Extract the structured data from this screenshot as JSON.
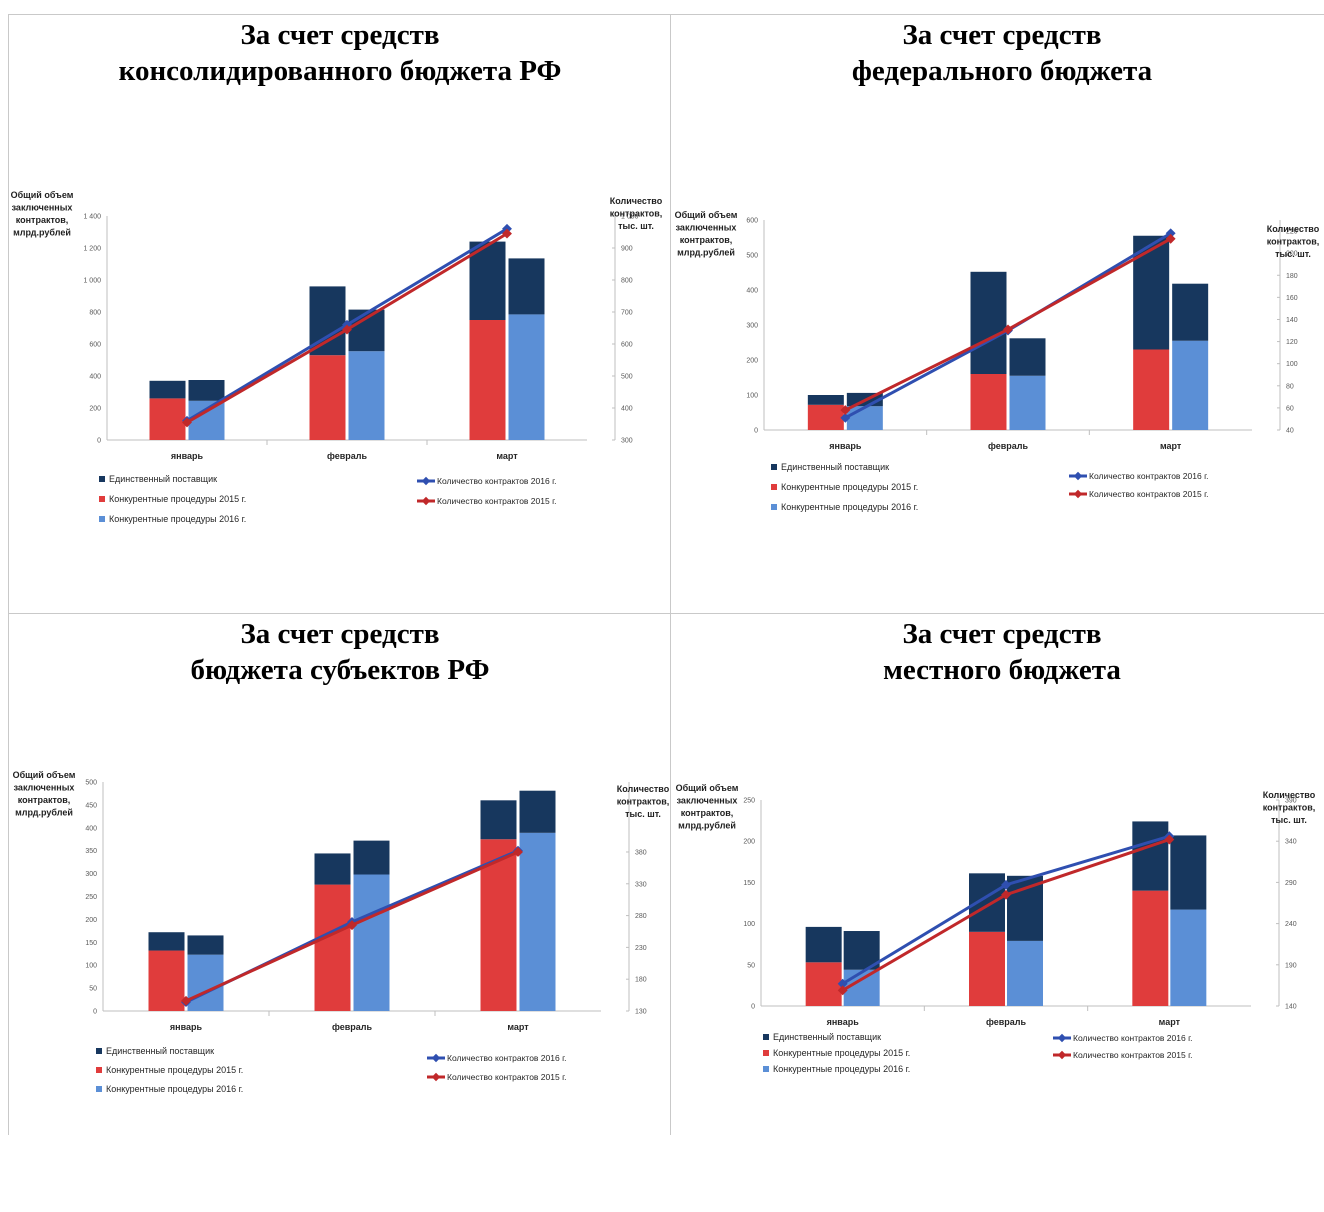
{
  "panels": [
    {
      "title_line1": "За счет средств",
      "title_line2": "консолидированного бюджета РФ"
    },
    {
      "title_line1": "За счет средств",
      "title_line2": "федерального бюджета"
    },
    {
      "title_line1": "За счет средств",
      "title_line2": "бюджета субъектов РФ"
    },
    {
      "title_line1": "За счет средств",
      "title_line2": "местного бюджета"
    }
  ],
  "colors": {
    "single_supplier": "#17375e",
    "competitive_2015": "#e03c3c",
    "competitive_2016": "#5b8fd6",
    "contracts_2016": "#2f4fb0",
    "contracts_2015": "#c0282a",
    "axis": "#bfbfbf",
    "tick_text": "#595959"
  },
  "chart_data": [
    {
      "type": "bar",
      "categories": [
        "январь",
        "февраль",
        "март"
      ],
      "ylabel": [
        "Общий объем",
        "заключенных",
        "контрактов,",
        "млрд.рублей"
      ],
      "y2label": [
        "Количество",
        "контрактов,",
        "тыс. шт."
      ],
      "ylim": [
        0,
        1400
      ],
      "yticks": [
        0,
        200,
        400,
        600,
        800,
        1000,
        1200,
        1400
      ],
      "ytick_labels": [
        "0",
        "200",
        "400",
        "600",
        "800",
        "1 000",
        "1 200",
        "1 400"
      ],
      "y2lim": [
        300,
        1000
      ],
      "y2ticks": [
        300,
        400,
        500,
        600,
        700,
        800,
        900,
        1000
      ],
      "y2tick_labels": [
        "300",
        "400",
        "500",
        "600",
        "700",
        "800",
        "900",
        "1 000"
      ],
      "series": [
        {
          "name": "Конкурентные процедуры 2015 г.",
          "values": [
            260,
            530,
            750
          ]
        },
        {
          "name": "Единственный поставщик",
          "values_2015": [
            110,
            430,
            490
          ],
          "values_2016": [
            130,
            260,
            350
          ]
        },
        {
          "name": "Конкурентные процедуры 2016 г.",
          "values": [
            245,
            555,
            785
          ]
        }
      ],
      "lines": [
        {
          "name": "Количество контрактов 2016 г.",
          "values": [
            360,
            660,
            960
          ]
        },
        {
          "name": "Количество контрактов  2015 г.",
          "values": [
            355,
            645,
            945
          ]
        }
      ],
      "legend": {
        "single": "Единственный поставщик",
        "comp2015": "Конкурентные процедуры 2015 г.",
        "comp2016": "Конкурентные процедуры 2016 г.",
        "line2016": "Количество контрактов 2016 г.",
        "line2015": "Количество контрактов  2015 г."
      }
    },
    {
      "type": "bar",
      "categories": [
        "январь",
        "февраль",
        "март"
      ],
      "ylabel": [
        "Общий объем",
        "заключенных",
        "контрактов,",
        "млрд.рублей"
      ],
      "y2label": [
        "Количество",
        "контрактов,",
        "тыс. шт."
      ],
      "ylim": [
        0,
        600
      ],
      "yticks": [
        0,
        100,
        200,
        300,
        400,
        500,
        600
      ],
      "ytick_labels": [
        "0",
        "100",
        "200",
        "300",
        "400",
        "500",
        "600"
      ],
      "y2lim": [
        40,
        230
      ],
      "y2ticks": [
        40,
        60,
        80,
        100,
        120,
        140,
        160,
        180,
        200,
        220
      ],
      "y2tick_labels": [
        "40",
        "60",
        "80",
        "100",
        "120",
        "140",
        "160",
        "180",
        "200",
        "220"
      ],
      "series": [
        {
          "name": "Конкурентные процедуры 2015 г.",
          "values": [
            72,
            160,
            230
          ]
        },
        {
          "name": "Единственный поставщик",
          "values_2015": [
            28,
            292,
            325
          ],
          "values_2016": [
            38,
            107,
            163
          ]
        },
        {
          "name": "Конкурентные процедуры 2016 г.",
          "values": [
            68,
            155,
            255
          ]
        }
      ],
      "lines": [
        {
          "name": "Количество контрактов 2016 г.",
          "values": [
            51,
            130,
            218
          ]
        },
        {
          "name": "Количество контрактов  2015 г.",
          "values": [
            58,
            131,
            213
          ]
        }
      ],
      "legend": {
        "single": "Единственный поставщик",
        "comp2015": "Конкурентные процедуры 2015 г.",
        "comp2016": "Конкурентные процедуры 2016 г.",
        "line2016": "Количество контрактов 2016 г.",
        "line2015": "Количество контрактов  2015 г."
      }
    },
    {
      "type": "bar",
      "categories": [
        "январь",
        "февраль",
        "март"
      ],
      "ylabel": [
        "Общий объем",
        "заключенных",
        "контрактов,",
        "млрд.рублей"
      ],
      "y2label": [
        "Количество",
        "контрактов,",
        "тыс. шт."
      ],
      "ylim": [
        0,
        500
      ],
      "yticks": [
        0,
        50,
        100,
        150,
        200,
        250,
        300,
        350,
        400,
        450,
        500
      ],
      "ytick_labels": [
        "0",
        "50",
        "100",
        "150",
        "200",
        "250",
        "300",
        "350",
        "400",
        "450",
        "500"
      ],
      "y2lim": [
        130,
        490
      ],
      "y2ticks": [
        130,
        180,
        230,
        280,
        330,
        380
      ],
      "y2tick_labels": [
        "130",
        "180",
        "230",
        "280",
        "330",
        "380"
      ],
      "series": [
        {
          "name": "Конкурентные процедуры 2015 г.",
          "values": [
            132,
            276,
            375
          ]
        },
        {
          "name": "Единственный поставщик",
          "values_2015": [
            40,
            68,
            85
          ],
          "values_2016": [
            42,
            74,
            92
          ]
        },
        {
          "name": "Конкурентные процедуры 2016 г.",
          "values": [
            123,
            298,
            389
          ]
        }
      ],
      "lines": [
        {
          "name": "Количество контрактов 2016 г.",
          "values": [
            144,
            270,
            382
          ]
        },
        {
          "name": "Количество контрактов  2015 г.",
          "values": [
            146,
            265,
            380
          ]
        }
      ],
      "legend": {
        "single": "Единственный поставщик",
        "comp2015": "Конкурентные процедуры 2015 г.",
        "comp2016": "Конкурентные процедуры 2016 г.",
        "line2016": "Количество контрактов 2016 г.",
        "line2015": "Количество контрактов  2015 г."
      }
    },
    {
      "type": "bar",
      "categories": [
        "январь",
        "февраль",
        "март"
      ],
      "ylabel": [
        "Общий объем",
        "заключенных",
        "контрактов,",
        "млрд.рублей"
      ],
      "y2label": [
        "Количество",
        "контрактов,",
        "тыс. шт."
      ],
      "ylim": [
        0,
        250
      ],
      "yticks": [
        0,
        50,
        100,
        150,
        200,
        250
      ],
      "ytick_labels": [
        "0",
        "50",
        "100",
        "150",
        "200",
        "250"
      ],
      "y2lim": [
        140,
        390
      ],
      "y2ticks": [
        140,
        190,
        240,
        290,
        340,
        390
      ],
      "y2tick_labels": [
        "140",
        "190",
        "240",
        "290",
        "340",
        "390"
      ],
      "series": [
        {
          "name": "Конкурентные процедуры 2015 г.",
          "values": [
            53,
            90,
            140
          ]
        },
        {
          "name": "Единственный поставщик",
          "values_2015": [
            43,
            71,
            84
          ],
          "values_2016": [
            47,
            79,
            90
          ]
        },
        {
          "name": "Конкурентные процедуры 2016 г.",
          "values": [
            44,
            79,
            117
          ]
        }
      ],
      "lines": [
        {
          "name": "Количество контрактов 2016 г.",
          "values": [
            167,
            287,
            346
          ]
        },
        {
          "name": "Количество контрактов  2015 г.",
          "values": [
            159,
            275,
            342
          ]
        }
      ],
      "legend": {
        "single": "Единственный поставщик",
        "comp2015": "Конкурентные процедуры 2015 г.",
        "comp2016": "Конкурентные процедуры 2016 г.",
        "line2016": "Количество контрактов 2016 г.",
        "line2015": "Количество контрактов  2015 г."
      }
    }
  ]
}
